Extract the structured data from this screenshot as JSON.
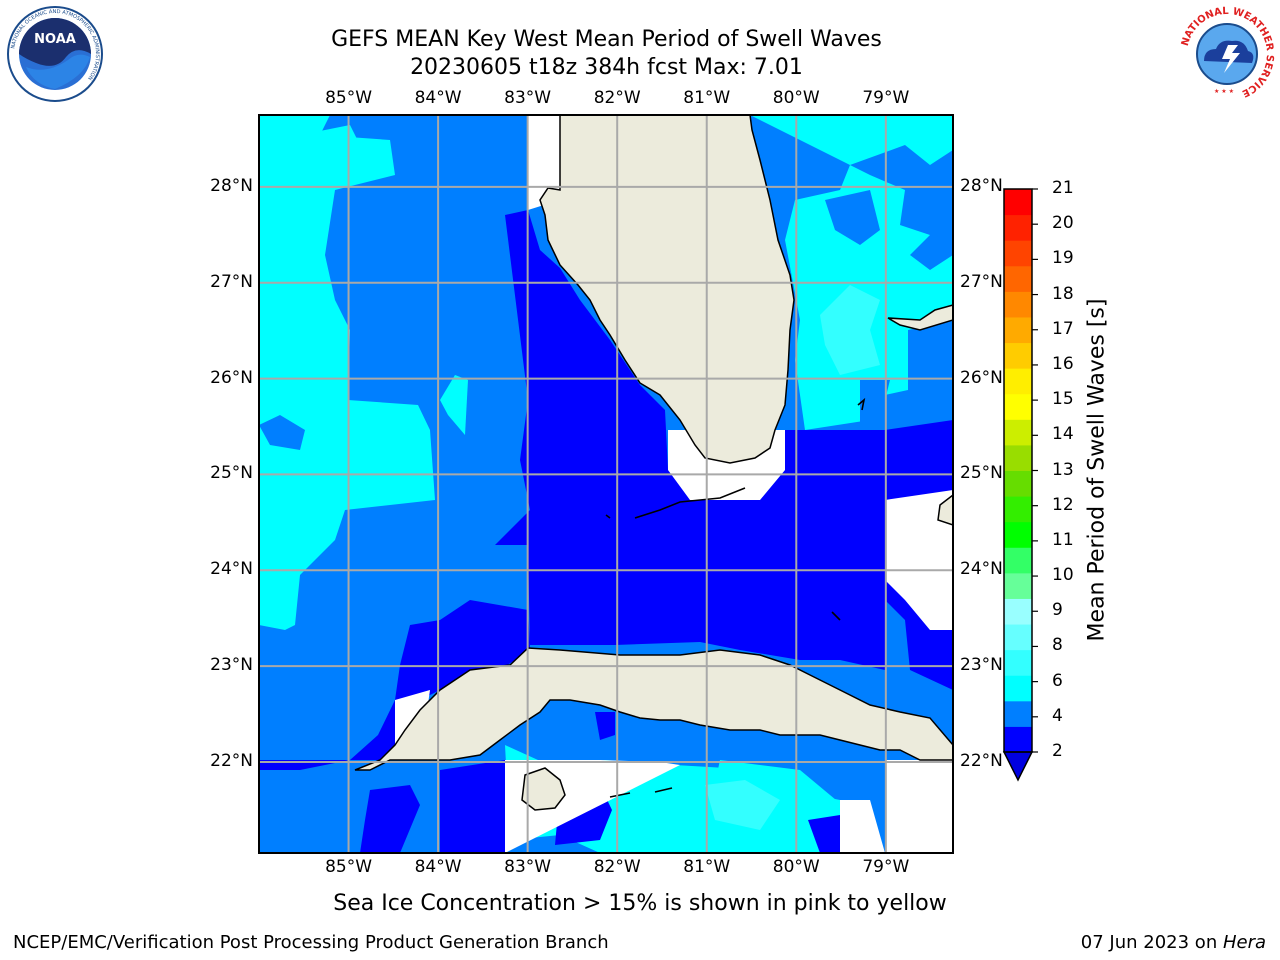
{
  "header": {
    "title_line1": "GEFS MEAN Key West Mean Period of Swell Waves",
    "title_line2": "20230605 t18z 384h fcst   Max: 7.01"
  },
  "logos": {
    "noaa_text": "NOAA",
    "noaa_ring_text": "NATIONAL OCEANIC AND ATMOSPHERIC ADMINISTRATION",
    "noaa_ring_text_bottom": "U.S. DEPARTMENT OF COMMERCE",
    "nws_ring_text": "NATIONAL WEATHER SERVICE"
  },
  "map": {
    "lon_labels": [
      "85°W",
      "84°W",
      "83°W",
      "82°W",
      "81°W",
      "80°W",
      "79°W"
    ],
    "lat_labels": [
      "28°N",
      "27°N",
      "26°N",
      "25°N",
      "24°N",
      "23°N",
      "22°N"
    ],
    "lon_range": [
      -86.0,
      -78.25
    ],
    "lat_range": [
      21.05,
      28.75
    ],
    "land_color": "#ecebdc",
    "grid": true
  },
  "colorbar": {
    "label": "Mean Period of Swell Waves [s]",
    "ticks": [
      "2",
      "4",
      "6",
      "8",
      "9",
      "10",
      "11",
      "12",
      "13",
      "14",
      "15",
      "16",
      "17",
      "18",
      "19",
      "20",
      "21"
    ],
    "colors": [
      "#0000ff",
      "#007fff",
      "#00ffff",
      "#33ffff",
      "#66ffff",
      "#99ffff",
      "#66ff99",
      "#33ff66",
      "#00ff00",
      "#33ee00",
      "#66dd00",
      "#99dd00",
      "#ccee00",
      "#ffff00",
      "#ffee00",
      "#ffcc00",
      "#ffaa00",
      "#ff8800",
      "#ff6600",
      "#ff4400",
      "#ff2200",
      "#ff0000"
    ],
    "under_color": "#0000e0"
  },
  "caption": "Sea Ice Concentration > 15% is shown in pink to yellow",
  "footer": {
    "left": "NCEP/EMC/Verification Post Processing Product Generation Branch",
    "date": "07 Jun 2023 on ",
    "machine": "Hera"
  }
}
